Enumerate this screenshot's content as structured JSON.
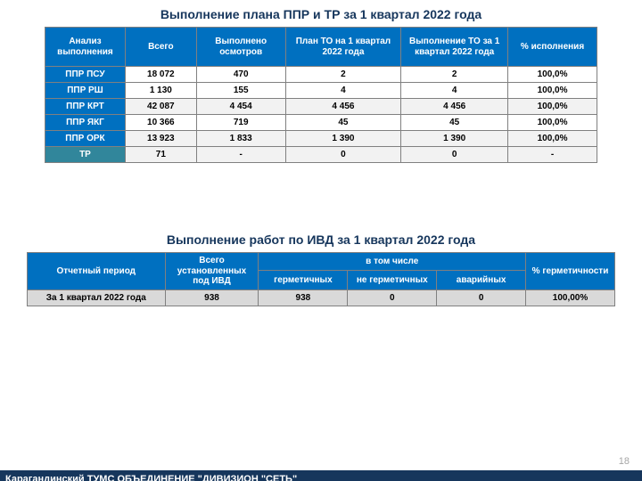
{
  "title1": "Выполнение плана ППР и ТР за 1 квартал 2022 года",
  "table1": {
    "headers": [
      "Анализ выполнения",
      "Всего",
      "Выполнено осмотров",
      "План ТО на 1 квартал 2022 года",
      "Выполнение ТО за 1 квартал 2022 года",
      "% исполнения"
    ],
    "rows": [
      {
        "label": "ППР ПСУ",
        "cells": [
          "18 072",
          "470",
          "2",
          "2",
          "100,0%"
        ],
        "alt": false,
        "tr": false
      },
      {
        "label": "ППР РШ",
        "cells": [
          "1 130",
          "155",
          "4",
          "4",
          "100,0%"
        ],
        "alt": false,
        "tr": false
      },
      {
        "label": "ППР КРТ",
        "cells": [
          "42 087",
          "4 454",
          "4 456",
          "4 456",
          "100,0%"
        ],
        "alt": true,
        "tr": false
      },
      {
        "label": "ППР ЯКГ",
        "cells": [
          "10 366",
          "719",
          "45",
          "45",
          "100,0%"
        ],
        "alt": false,
        "tr": false
      },
      {
        "label": "ППР ОРК",
        "cells": [
          "13 923",
          "1 833",
          "1 390",
          "1 390",
          "100,0%"
        ],
        "alt": true,
        "tr": false
      },
      {
        "label": "ТР",
        "cells": [
          "71",
          "-",
          "0",
          "0",
          "-"
        ],
        "alt": true,
        "tr": true
      }
    ],
    "colors": {
      "header_bg": "#0070c0",
      "header_fg": "#ffffff",
      "tr_bg": "#31869b",
      "alt_bg": "#f2f2f2",
      "border": "#808080"
    }
  },
  "title2": "Выполнение работ по ИВД за 1 квартал 2022 года",
  "table2": {
    "headers": {
      "h1": "Отчетный период",
      "h2": "Всего установленных под ИВД",
      "h3": "в том числе",
      "h3a": "герметичных",
      "h3b": "не герметичных",
      "h3c": "аварийных",
      "h4": "% герметичности"
    },
    "row": {
      "label": "За 1 квартал 2022 года",
      "cells": [
        "938",
        "938",
        "0",
        "0",
        "100,00%"
      ]
    },
    "colors": {
      "header_bg": "#0070c0",
      "row_bg": "#d9d9d9",
      "border": "#808080"
    }
  },
  "page_number": "18",
  "footer": "Карагандинский ТУМС ОБЪЕДИНЕНИЕ \"ДИВИЗИОН \"СЕТЬ\""
}
